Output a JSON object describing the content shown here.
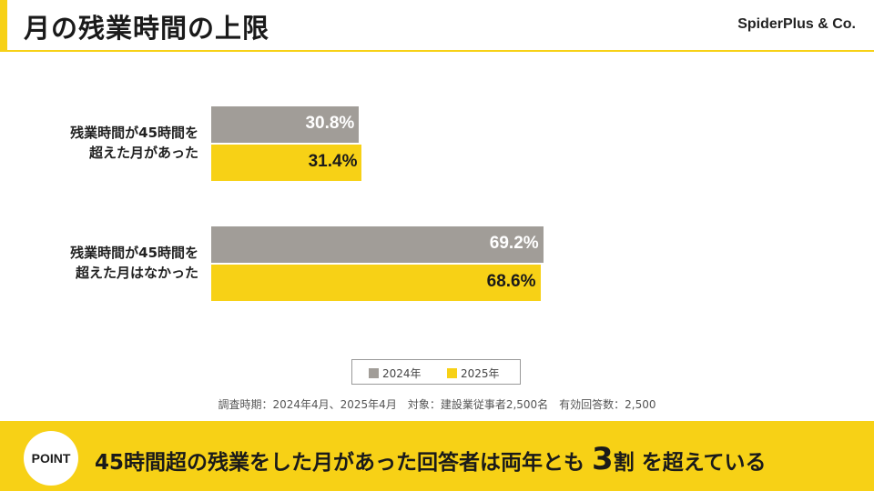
{
  "header": {
    "title": "月の残業時間の上限",
    "brand": "SpiderPlus & Co."
  },
  "colors": {
    "accent": "#f7d116",
    "series_2024": "#a19d98",
    "series_2025": "#f7d116"
  },
  "chart_data": {
    "type": "bar",
    "orientation": "horizontal",
    "categories": [
      [
        "残業時間が45時間を",
        "超えた月があった"
      ],
      [
        "残業時間が45時間を",
        "超えた月はなかった"
      ]
    ],
    "series": [
      {
        "name": "2024年",
        "values": [
          30.8,
          69.2
        ],
        "labels": [
          "30.8%",
          "69.2%"
        ]
      },
      {
        "name": "2025年",
        "values": [
          31.4,
          68.6
        ],
        "labels": [
          "31.4%",
          "68.6%"
        ]
      }
    ],
    "unit": "%",
    "xlim": [
      0,
      100
    ],
    "legend": "bottom",
    "grid": false
  },
  "legend": {
    "items": [
      "2024年",
      "2025年"
    ]
  },
  "note": "調査時期：2024年4月、2025年4月　対象：建設業従事者2,500名　有効回答数：2,500",
  "banner": {
    "badge": "POINT",
    "text_before": "45時間超の残業をした月があった回答者は両年とも ",
    "emphasis": "3",
    "text_after": "割 を超えている"
  }
}
